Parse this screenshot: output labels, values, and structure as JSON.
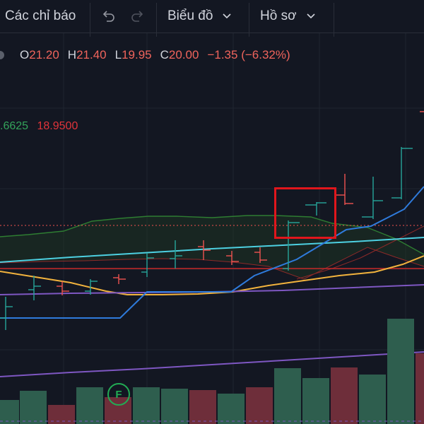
{
  "toolbar": {
    "indicators_label": "Các chỉ báo",
    "chart_label": "Biểu đồ",
    "profile_label": "Hồ sơ"
  },
  "legend": {
    "open_label": "O",
    "open_value": "21.20",
    "high_label": "H",
    "high_value": "21.40",
    "low_label": "L",
    "low_value": "19.95",
    "close_label": "C",
    "close_value": "20.00",
    "change": "−1.35 (−6.32%)"
  },
  "indicator": {
    "value_1": ".6625",
    "value_2": "18.9500"
  },
  "earnings_marker": "F",
  "colors": {
    "background": "#131722",
    "up": "#26a69a",
    "down": "#ef5350",
    "highlight_box": "#e0161c",
    "cloud": "#1b5e20"
  }
}
